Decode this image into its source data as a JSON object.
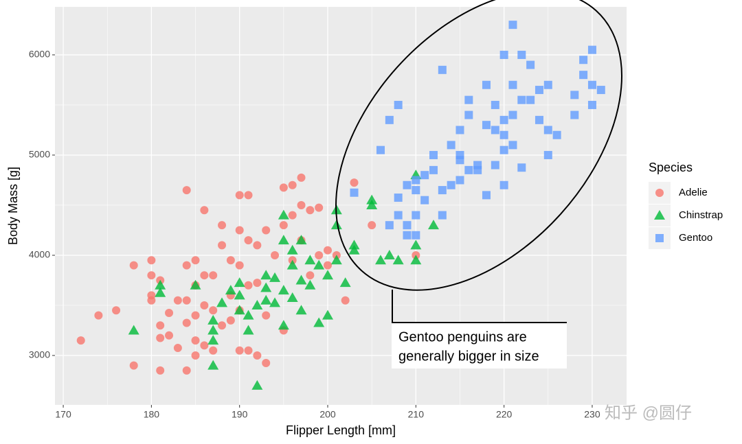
{
  "chart_data": {
    "type": "scatter",
    "x_label": "Flipper Length [mm]",
    "y_label": "Body Mass [g]",
    "xlim": [
      169.06,
      233.9
    ],
    "ylim": [
      2507,
      6479
    ],
    "xticks": [
      170,
      180,
      190,
      200,
      210,
      220,
      230
    ],
    "yticks": [
      3000,
      4000,
      5000,
      6000
    ],
    "grid": true,
    "legend_title": "Species",
    "legend_position": "right",
    "series": [
      {
        "name": "Adelie",
        "color": "#F8766D",
        "shape": "circle",
        "x": [
          172,
          174,
          176,
          178,
          178,
          180,
          180,
          180,
          180,
          181,
          181,
          181,
          181,
          182,
          182,
          183,
          183,
          184,
          184,
          184,
          184,
          184,
          185,
          185,
          185,
          185,
          185,
          186,
          186,
          186,
          186,
          187,
          187,
          187,
          188,
          188,
          188,
          189,
          189,
          189,
          190,
          190,
          190,
          190,
          190,
          191,
          191,
          191,
          191,
          192,
          192,
          192,
          193,
          193,
          193,
          194,
          195,
          195,
          195,
          196,
          196,
          196,
          197,
          197,
          197,
          198,
          198,
          199,
          199,
          200,
          200,
          201,
          202,
          203,
          205,
          210
        ],
        "values": [
          3150,
          3400,
          3450,
          3900,
          2900,
          3950,
          3800,
          3600,
          3550,
          3750,
          3300,
          3175,
          2850,
          3200,
          3425,
          3550,
          3075,
          4650,
          3900,
          3550,
          3325,
          2850,
          3950,
          3700,
          3400,
          3150,
          3000,
          4450,
          3800,
          3500,
          3100,
          3800,
          3450,
          3050,
          4300,
          4100,
          3300,
          3950,
          3600,
          3350,
          4600,
          4250,
          3900,
          3450,
          3050,
          4600,
          4150,
          3700,
          3050,
          4100,
          3725,
          3000,
          4250,
          3400,
          2925,
          4000,
          4675,
          4300,
          3250,
          4700,
          4400,
          3950,
          4775,
          4500,
          4150,
          4450,
          3800,
          4475,
          4000,
          4050,
          3900,
          4000,
          3550,
          4725,
          4300,
          4000
        ]
      },
      {
        "name": "Chinstrap",
        "color": "#00BA38",
        "shape": "triangle",
        "x": [
          178,
          181,
          181,
          185,
          187,
          187,
          187,
          187,
          188,
          189,
          190,
          190,
          190,
          191,
          191,
          192,
          192,
          193,
          193,
          193,
          194,
          194,
          195,
          195,
          195,
          195,
          196,
          196,
          196,
          197,
          197,
          197,
          198,
          198,
          199,
          199,
          200,
          200,
          201,
          201,
          201,
          202,
          203,
          203,
          205,
          205,
          206,
          207,
          208,
          210,
          210,
          210,
          212
        ],
        "values": [
          3250,
          3700,
          3625,
          3700,
          3250,
          3350,
          3150,
          2900,
          3525,
          3650,
          3450,
          3600,
          3725,
          3400,
          3250,
          2700,
          3500,
          3800,
          3675,
          3550,
          3775,
          3525,
          4400,
          4150,
          3650,
          3300,
          4050,
          3900,
          3575,
          4150,
          3750,
          3450,
          3950,
          3700,
          3900,
          3325,
          3800,
          3400,
          4300,
          4450,
          3950,
          3725,
          4050,
          4100,
          4550,
          4500,
          3950,
          4000,
          3950,
          4800,
          4100,
          3950,
          4300
        ]
      },
      {
        "name": "Gentoo",
        "color": "#619CFF",
        "shape": "square",
        "x": [
          203,
          206,
          207,
          207,
          208,
          208,
          208,
          209,
          209,
          210,
          210,
          211,
          211,
          212,
          212,
          213,
          213,
          213,
          214,
          214,
          215,
          215,
          215,
          215,
          216,
          216,
          216,
          217,
          217,
          218,
          218,
          218,
          219,
          219,
          219,
          220,
          220,
          220,
          220,
          220,
          221,
          221,
          221,
          222,
          222,
          222,
          223,
          223,
          224,
          224,
          225,
          225,
          225,
          226,
          228,
          228,
          229,
          229,
          230,
          230,
          230,
          231,
          221,
          210,
          209,
          210
        ],
        "values": [
          4625,
          5050,
          4300,
          5350,
          5500,
          4575,
          4400,
          4700,
          4300,
          4750,
          4400,
          4800,
          4550,
          5000,
          4850,
          4650,
          4400,
          5850,
          5100,
          4700,
          5250,
          5000,
          4950,
          4750,
          5400,
          5550,
          4850,
          4900,
          4850,
          5700,
          5300,
          4600,
          5500,
          5250,
          4900,
          6000,
          5350,
          5200,
          5050,
          4700,
          5400,
          5100,
          5700,
          5550,
          4875,
          6000,
          5550,
          5900,
          5650,
          5350,
          5700,
          5000,
          5250,
          5200,
          5600,
          5400,
          5800,
          5950,
          6050,
          5700,
          5500,
          5650,
          6300,
          4650,
          4200,
          4200
        ]
      }
    ],
    "annotation": [
      "Gentoo penguins are",
      "generally bigger in size"
    ],
    "watermark": "知乎 @圆仔"
  }
}
